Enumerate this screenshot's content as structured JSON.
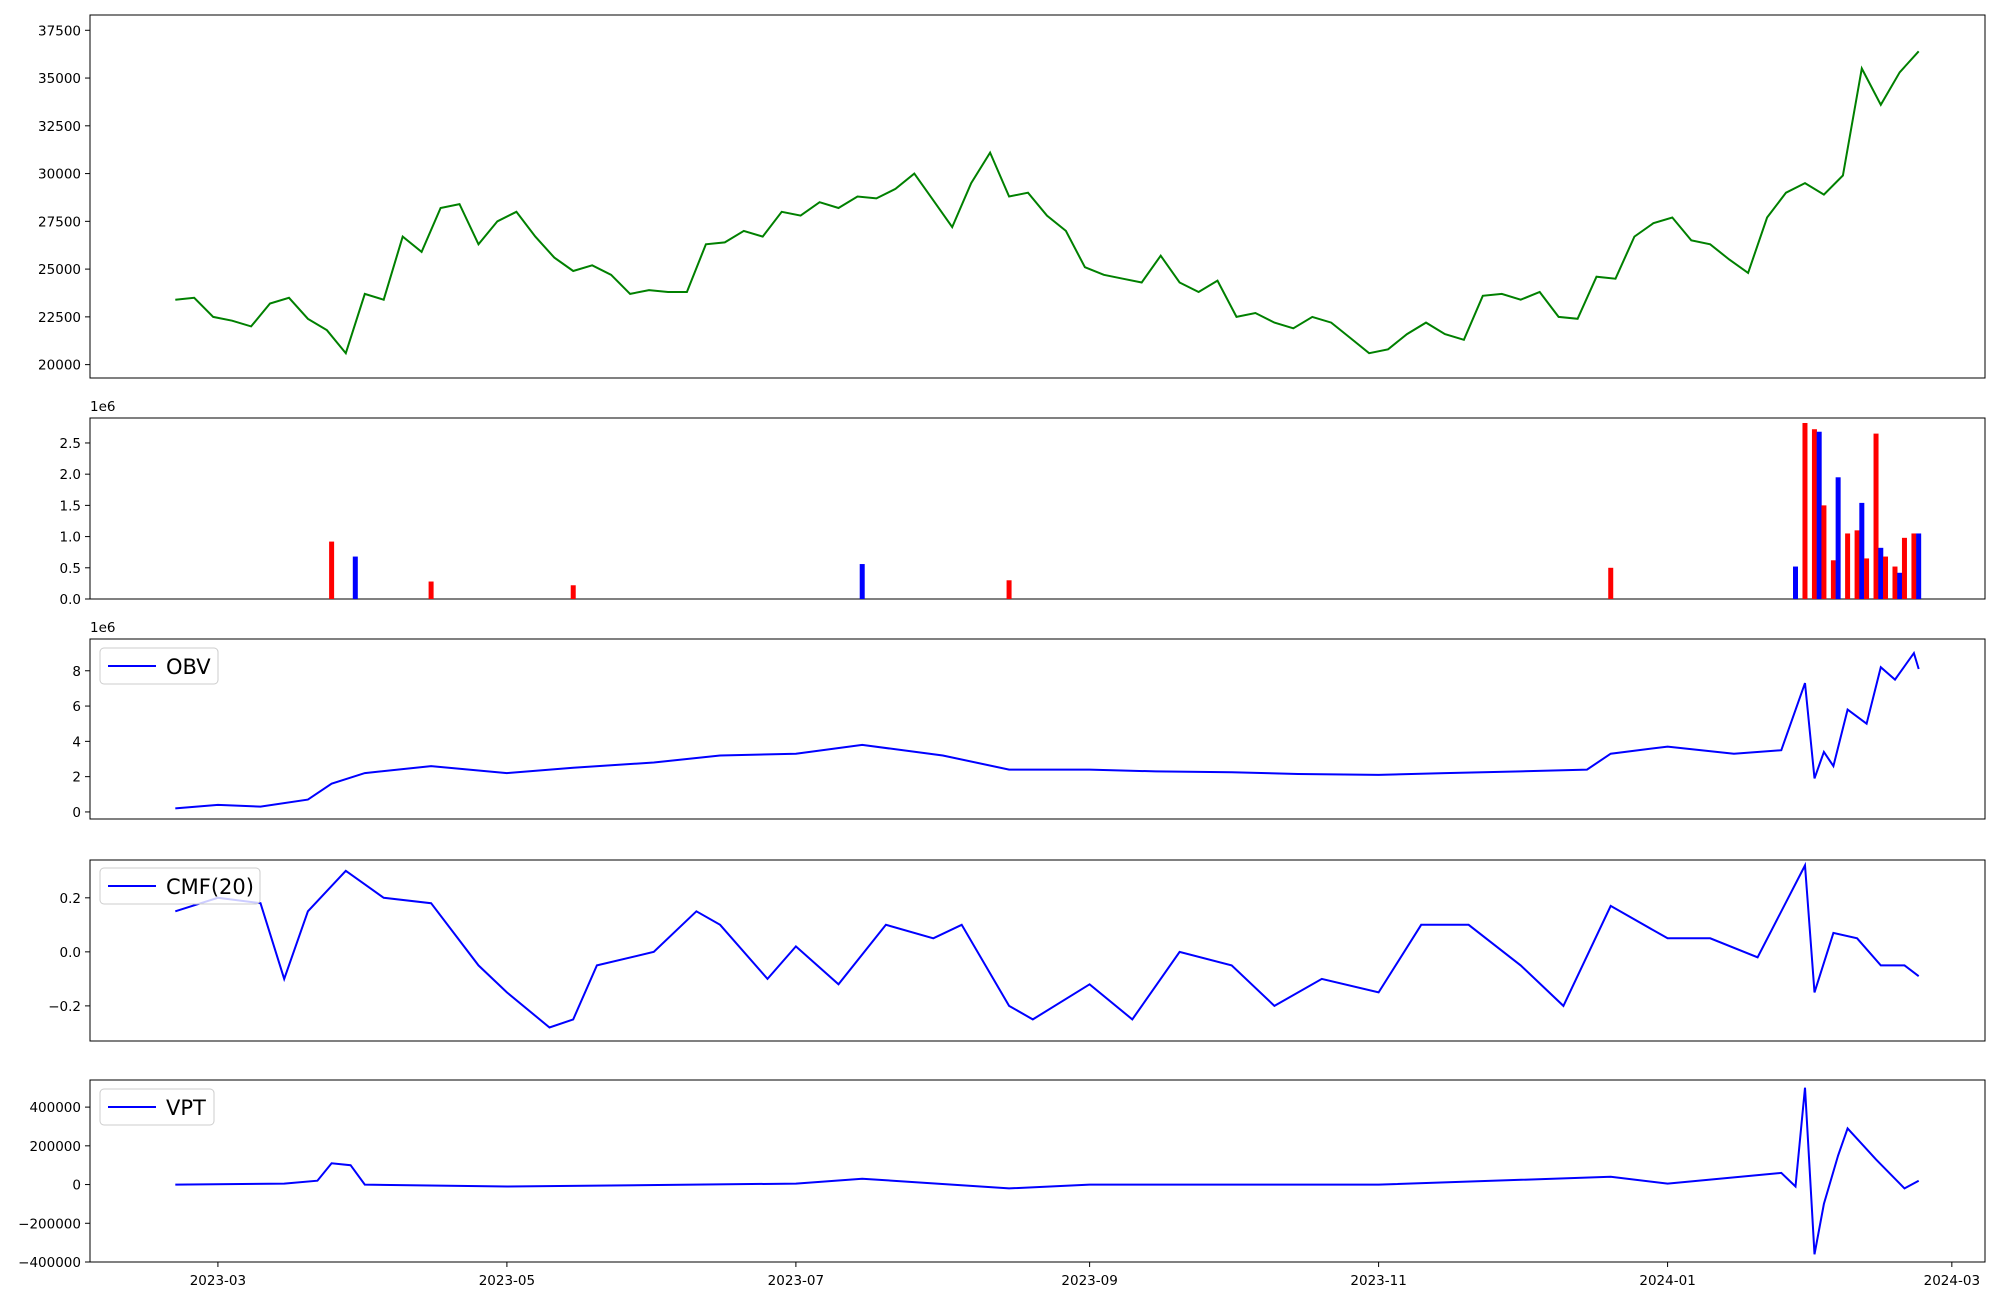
{
  "x_axis": {
    "tick_labels": [
      "2023-03",
      "2023-05",
      "2023-07",
      "2023-09",
      "2023-11",
      "2024-01",
      "2024-03"
    ],
    "tick_dates": [
      "2023-03-01",
      "2023-05-01",
      "2023-07-01",
      "2023-09-01",
      "2023-11-01",
      "2024-01-01",
      "2024-03-01"
    ]
  },
  "chart_data": [
    {
      "type": "line",
      "name": "price",
      "color": "#008000",
      "ylim": [
        19300,
        38300
      ],
      "yticks": [
        20000,
        22500,
        25000,
        27500,
        30000,
        32500,
        35000,
        37500
      ],
      "ytick_labels": [
        "20000",
        "22500",
        "25000",
        "27500",
        "30000",
        "32500",
        "35000",
        "37500"
      ],
      "x": [
        "2023-02-20",
        "2023-02-24",
        "2023-02-28",
        "2023-03-04",
        "2023-03-08",
        "2023-03-12",
        "2023-03-16",
        "2023-03-20",
        "2023-03-24",
        "2023-03-28",
        "2023-04-01",
        "2023-04-05",
        "2023-04-09",
        "2023-04-13",
        "2023-04-17",
        "2023-04-21",
        "2023-04-25",
        "2023-04-29",
        "2023-05-03",
        "2023-05-07",
        "2023-05-11",
        "2023-05-15",
        "2023-05-19",
        "2023-05-23",
        "2023-05-27",
        "2023-05-31",
        "2023-06-04",
        "2023-06-08",
        "2023-06-12",
        "2023-06-16",
        "2023-06-20",
        "2023-06-24",
        "2023-06-28",
        "2023-07-02",
        "2023-07-06",
        "2023-07-10",
        "2023-07-14",
        "2023-07-18",
        "2023-07-22",
        "2023-07-26",
        "2023-07-30",
        "2023-08-03",
        "2023-08-07",
        "2023-08-11",
        "2023-08-15",
        "2023-08-19",
        "2023-08-23",
        "2023-08-27",
        "2023-08-31",
        "2023-09-04",
        "2023-09-08",
        "2023-09-12",
        "2023-09-16",
        "2023-09-20",
        "2023-09-24",
        "2023-09-28",
        "2023-10-02",
        "2023-10-06",
        "2023-10-10",
        "2023-10-14",
        "2023-10-18",
        "2023-10-22",
        "2023-10-26",
        "2023-10-30",
        "2023-11-03",
        "2023-11-07",
        "2023-11-11",
        "2023-11-15",
        "2023-11-19",
        "2023-11-23",
        "2023-11-27",
        "2023-12-01",
        "2023-12-05",
        "2023-12-09",
        "2023-12-13",
        "2023-12-17",
        "2023-12-21",
        "2023-12-25",
        "2023-12-29",
        "2024-01-02",
        "2024-01-06",
        "2024-01-10",
        "2024-01-14",
        "2024-01-18",
        "2024-01-22",
        "2024-01-26",
        "2024-01-30",
        "2024-02-03",
        "2024-02-07",
        "2024-02-11",
        "2024-02-15",
        "2024-02-19",
        "2024-02-23"
      ],
      "values": [
        23400,
        23500,
        22500,
        22300,
        22000,
        23200,
        23500,
        22400,
        21800,
        20600,
        23700,
        23400,
        26700,
        25900,
        28200,
        28400,
        26300,
        27500,
        28000,
        26700,
        25600,
        24900,
        25200,
        24700,
        23700,
        23900,
        23800,
        23800,
        26300,
        26400,
        27000,
        26700,
        28000,
        27800,
        28500,
        28200,
        28800,
        28700,
        29200,
        30000,
        28600,
        27200,
        29500,
        31100,
        28800,
        29000,
        27800,
        27000,
        25100,
        24700,
        24500,
        24300,
        25700,
        24300,
        23800,
        24400,
        22500,
        22700,
        22200,
        21900,
        22500,
        22200,
        21400,
        20600,
        20800,
        21600,
        22200,
        21600,
        21300,
        23600,
        23700,
        23400,
        23800,
        22500,
        22400,
        24600,
        24500,
        26700,
        27400,
        27700,
        26500,
        26300,
        25500,
        24800,
        27700,
        29000,
        29500,
        28900,
        29900,
        35500,
        33600,
        35300,
        36400
      ]
    },
    {
      "type": "bar",
      "name": "volume",
      "offset_label": "1e6",
      "ylim": [
        0,
        2900000
      ],
      "yticks": [
        0,
        500000,
        1000000,
        1500000,
        2000000,
        2500000
      ],
      "ytick_labels": [
        "0.0",
        "0.5",
        "1.0",
        "1.5",
        "2.0",
        "2.5"
      ],
      "colors": {
        "up": "#ff0000",
        "down": "#0000ff",
        "flat": "#000000"
      },
      "x": [
        "2023-03-25",
        "2023-03-30",
        "2023-04-15",
        "2023-05-15",
        "2023-07-15",
        "2023-08-15",
        "2023-12-20",
        "2024-01-28",
        "2024-01-30",
        "2024-02-01",
        "2024-02-02",
        "2024-02-03",
        "2024-02-05",
        "2024-02-06",
        "2024-02-08",
        "2024-02-10",
        "2024-02-11",
        "2024-02-12",
        "2024-02-14",
        "2024-02-15",
        "2024-02-16",
        "2024-02-18",
        "2024-02-19",
        "2024-02-20",
        "2024-02-22",
        "2024-02-23"
      ],
      "values": [
        920000,
        680000,
        280000,
        220000,
        560000,
        300000,
        500000,
        520000,
        2820000,
        2720000,
        2680000,
        1500000,
        620000,
        1950000,
        1050000,
        1100000,
        1540000,
        650000,
        2650000,
        820000,
        680000,
        520000,
        420000,
        980000,
        1050000,
        1050000
      ]
    },
    {
      "type": "line",
      "name": "OBV",
      "legend": "OBV",
      "color": "#0000ff",
      "offset_label": "1e6",
      "ylim": [
        -400000,
        9800000
      ],
      "yticks": [
        0,
        2000000,
        4000000,
        6000000,
        8000000
      ],
      "ytick_labels": [
        "0",
        "2",
        "4",
        "6",
        "8"
      ],
      "x": [
        "2023-02-20",
        "2023-03-01",
        "2023-03-10",
        "2023-03-20",
        "2023-03-25",
        "2023-04-01",
        "2023-04-15",
        "2023-05-01",
        "2023-05-15",
        "2023-06-01",
        "2023-06-15",
        "2023-07-01",
        "2023-07-15",
        "2023-08-01",
        "2023-08-15",
        "2023-09-01",
        "2023-09-15",
        "2023-10-01",
        "2023-10-15",
        "2023-11-01",
        "2023-11-15",
        "2023-12-01",
        "2023-12-15",
        "2023-12-20",
        "2024-01-01",
        "2024-01-15",
        "2024-01-25",
        "2024-01-30",
        "2024-02-01",
        "2024-02-03",
        "2024-02-05",
        "2024-02-08",
        "2024-02-12",
        "2024-02-15",
        "2024-02-18",
        "2024-02-22",
        "2024-02-23"
      ],
      "values": [
        200000,
        400000,
        300000,
        700000,
        1600000,
        2200000,
        2600000,
        2200000,
        2500000,
        2800000,
        3200000,
        3300000,
        3800000,
        3200000,
        2400000,
        2400000,
        2300000,
        2250000,
        2150000,
        2100000,
        2200000,
        2300000,
        2400000,
        3300000,
        3700000,
        3300000,
        3500000,
        7300000,
        1900000,
        3400000,
        2600000,
        5800000,
        5000000,
        8200000,
        7500000,
        9000000,
        8100000
      ]
    },
    {
      "type": "line",
      "name": "CMF(20)",
      "legend": "CMF(20)",
      "color": "#0000ff",
      "ylim": [
        -0.33,
        0.34
      ],
      "yticks": [
        -0.2,
        0.0,
        0.2
      ],
      "ytick_labels": [
        "−0.2",
        "0.0",
        "0.2"
      ],
      "x": [
        "2023-02-20",
        "2023-03-01",
        "2023-03-10",
        "2023-03-15",
        "2023-03-20",
        "2023-03-28",
        "2023-04-05",
        "2023-04-15",
        "2023-04-25",
        "2023-05-01",
        "2023-05-10",
        "2023-05-15",
        "2023-05-20",
        "2023-06-01",
        "2023-06-10",
        "2023-06-15",
        "2023-06-25",
        "2023-07-01",
        "2023-07-10",
        "2023-07-20",
        "2023-07-30",
        "2023-08-05",
        "2023-08-15",
        "2023-08-20",
        "2023-09-01",
        "2023-09-10",
        "2023-09-20",
        "2023-10-01",
        "2023-10-10",
        "2023-10-20",
        "2023-11-01",
        "2023-11-10",
        "2023-11-20",
        "2023-12-01",
        "2023-12-10",
        "2023-12-20",
        "2024-01-01",
        "2024-01-10",
        "2024-01-20",
        "2024-01-30",
        "2024-02-01",
        "2024-02-05",
        "2024-02-10",
        "2024-02-15",
        "2024-02-20",
        "2024-02-23"
      ],
      "values": [
        0.15,
        0.2,
        0.18,
        -0.1,
        0.15,
        0.3,
        0.2,
        0.18,
        -0.05,
        -0.15,
        -0.28,
        -0.25,
        -0.05,
        0.0,
        0.15,
        0.1,
        -0.1,
        0.02,
        -0.12,
        0.1,
        0.05,
        0.1,
        -0.2,
        -0.25,
        -0.12,
        -0.25,
        0.0,
        -0.05,
        -0.2,
        -0.1,
        -0.15,
        0.1,
        0.1,
        -0.05,
        -0.2,
        0.17,
        0.05,
        0.05,
        -0.02,
        0.32,
        -0.15,
        0.07,
        0.05,
        -0.05,
        -0.05,
        -0.09
      ]
    },
    {
      "type": "line",
      "name": "VPT",
      "legend": "VPT",
      "color": "#0000ff",
      "ylim": [
        -400000,
        540000
      ],
      "yticks": [
        -400000,
        -200000,
        0,
        200000,
        400000
      ],
      "ytick_labels": [
        "−400000",
        "−200000",
        "0",
        "200000",
        "400000"
      ],
      "x": [
        "2023-02-20",
        "2023-03-15",
        "2023-03-22",
        "2023-03-25",
        "2023-03-29",
        "2023-04-01",
        "2023-05-01",
        "2023-07-01",
        "2023-07-15",
        "2023-08-15",
        "2023-09-01",
        "2023-11-01",
        "2023-12-20",
        "2024-01-01",
        "2024-01-25",
        "2024-01-28",
        "2024-01-30",
        "2024-02-01",
        "2024-02-03",
        "2024-02-06",
        "2024-02-08",
        "2024-02-14",
        "2024-02-20",
        "2024-02-23"
      ],
      "values": [
        0,
        5000,
        20000,
        110000,
        100000,
        0,
        -10000,
        5000,
        30000,
        -20000,
        0,
        0,
        40000,
        5000,
        60000,
        -10000,
        500000,
        -360000,
        -100000,
        150000,
        290000,
        130000,
        -20000,
        20000
      ]
    }
  ]
}
